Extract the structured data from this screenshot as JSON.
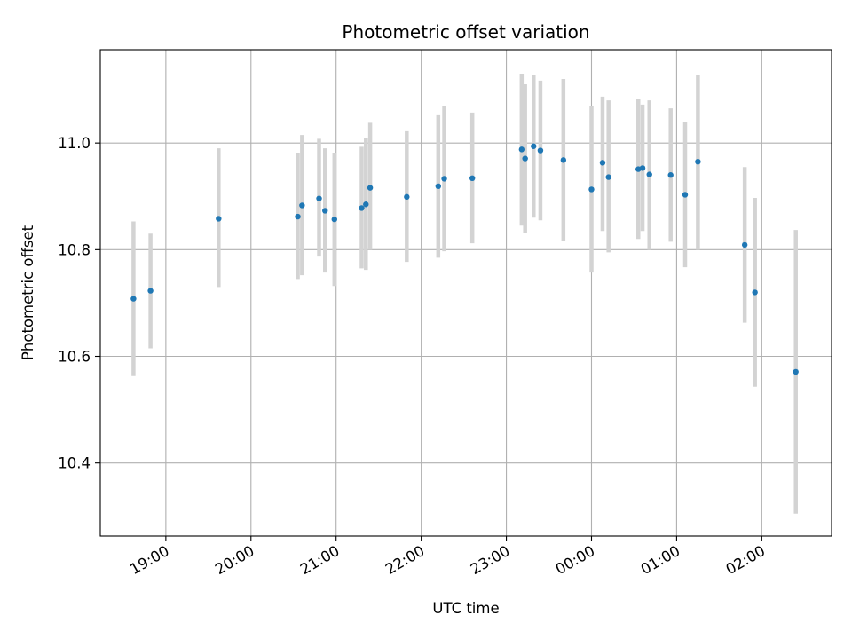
{
  "chart_data": {
    "type": "scatter",
    "title": "Photometric offset variation",
    "xlabel": "UTC time",
    "ylabel": "Photometric offset",
    "x_unit": "hours (UTC, continuing past midnight)",
    "xlim": [
      18.23,
      26.82
    ],
    "ylim": [
      10.263,
      11.175
    ],
    "x_ticks": [
      {
        "value": 19,
        "label": "19:00"
      },
      {
        "value": 20,
        "label": "20:00"
      },
      {
        "value": 21,
        "label": "21:00"
      },
      {
        "value": 22,
        "label": "22:00"
      },
      {
        "value": 23,
        "label": "23:00"
      },
      {
        "value": 24,
        "label": "00:00"
      },
      {
        "value": 25,
        "label": "01:00"
      },
      {
        "value": 26,
        "label": "02:00"
      }
    ],
    "y_ticks": [
      {
        "value": 10.4,
        "label": "10.4"
      },
      {
        "value": 10.6,
        "label": "10.6"
      },
      {
        "value": 10.8,
        "label": "10.8"
      },
      {
        "value": 11.0,
        "label": "11.0"
      }
    ],
    "grid": true,
    "colors": {
      "points": "#1f77b4",
      "errorbars": "#d3d3d3"
    },
    "points": [
      {
        "x": 18.62,
        "y": 10.708,
        "ylo": 10.563,
        "yhi": 10.853
      },
      {
        "x": 18.82,
        "y": 10.723,
        "ylo": 10.615,
        "yhi": 10.83
      },
      {
        "x": 19.62,
        "y": 10.858,
        "ylo": 10.73,
        "yhi": 10.99
      },
      {
        "x": 20.55,
        "y": 10.862,
        "ylo": 10.745,
        "yhi": 10.982
      },
      {
        "x": 20.6,
        "y": 10.883,
        "ylo": 10.752,
        "yhi": 11.015
      },
      {
        "x": 20.8,
        "y": 10.896,
        "ylo": 10.787,
        "yhi": 11.008
      },
      {
        "x": 20.87,
        "y": 10.873,
        "ylo": 10.757,
        "yhi": 10.99
      },
      {
        "x": 20.98,
        "y": 10.857,
        "ylo": 10.732,
        "yhi": 10.982
      },
      {
        "x": 21.3,
        "y": 10.878,
        "ylo": 10.765,
        "yhi": 10.993
      },
      {
        "x": 21.35,
        "y": 10.885,
        "ylo": 10.762,
        "yhi": 11.01
      },
      {
        "x": 21.4,
        "y": 10.916,
        "ylo": 10.8,
        "yhi": 11.038
      },
      {
        "x": 21.83,
        "y": 10.899,
        "ylo": 10.777,
        "yhi": 11.022
      },
      {
        "x": 22.2,
        "y": 10.919,
        "ylo": 10.785,
        "yhi": 11.052
      },
      {
        "x": 22.27,
        "y": 10.933,
        "ylo": 10.797,
        "yhi": 11.07
      },
      {
        "x": 22.6,
        "y": 10.934,
        "ylo": 10.812,
        "yhi": 11.057
      },
      {
        "x": 23.18,
        "y": 10.988,
        "ylo": 10.845,
        "yhi": 11.13
      },
      {
        "x": 23.22,
        "y": 10.971,
        "ylo": 10.832,
        "yhi": 11.11
      },
      {
        "x": 23.32,
        "y": 10.994,
        "ylo": 10.86,
        "yhi": 11.128
      },
      {
        "x": 23.4,
        "y": 10.986,
        "ylo": 10.855,
        "yhi": 11.117
      },
      {
        "x": 23.67,
        "y": 10.968,
        "ylo": 10.817,
        "yhi": 11.12
      },
      {
        "x": 24.0,
        "y": 10.913,
        "ylo": 10.757,
        "yhi": 11.07
      },
      {
        "x": 24.13,
        "y": 10.963,
        "ylo": 10.835,
        "yhi": 11.087
      },
      {
        "x": 24.2,
        "y": 10.936,
        "ylo": 10.795,
        "yhi": 11.08
      },
      {
        "x": 24.55,
        "y": 10.951,
        "ylo": 10.82,
        "yhi": 11.083
      },
      {
        "x": 24.6,
        "y": 10.953,
        "ylo": 10.835,
        "yhi": 11.072
      },
      {
        "x": 24.68,
        "y": 10.941,
        "ylo": 10.8,
        "yhi": 11.08
      },
      {
        "x": 24.93,
        "y": 10.94,
        "ylo": 10.815,
        "yhi": 11.065
      },
      {
        "x": 25.1,
        "y": 10.903,
        "ylo": 10.767,
        "yhi": 11.04
      },
      {
        "x": 25.25,
        "y": 10.965,
        "ylo": 10.8,
        "yhi": 11.128
      },
      {
        "x": 25.8,
        "y": 10.809,
        "ylo": 10.663,
        "yhi": 10.955
      },
      {
        "x": 25.92,
        "y": 10.72,
        "ylo": 10.543,
        "yhi": 10.897
      },
      {
        "x": 26.4,
        "y": 10.571,
        "ylo": 10.305,
        "yhi": 10.837
      }
    ]
  }
}
